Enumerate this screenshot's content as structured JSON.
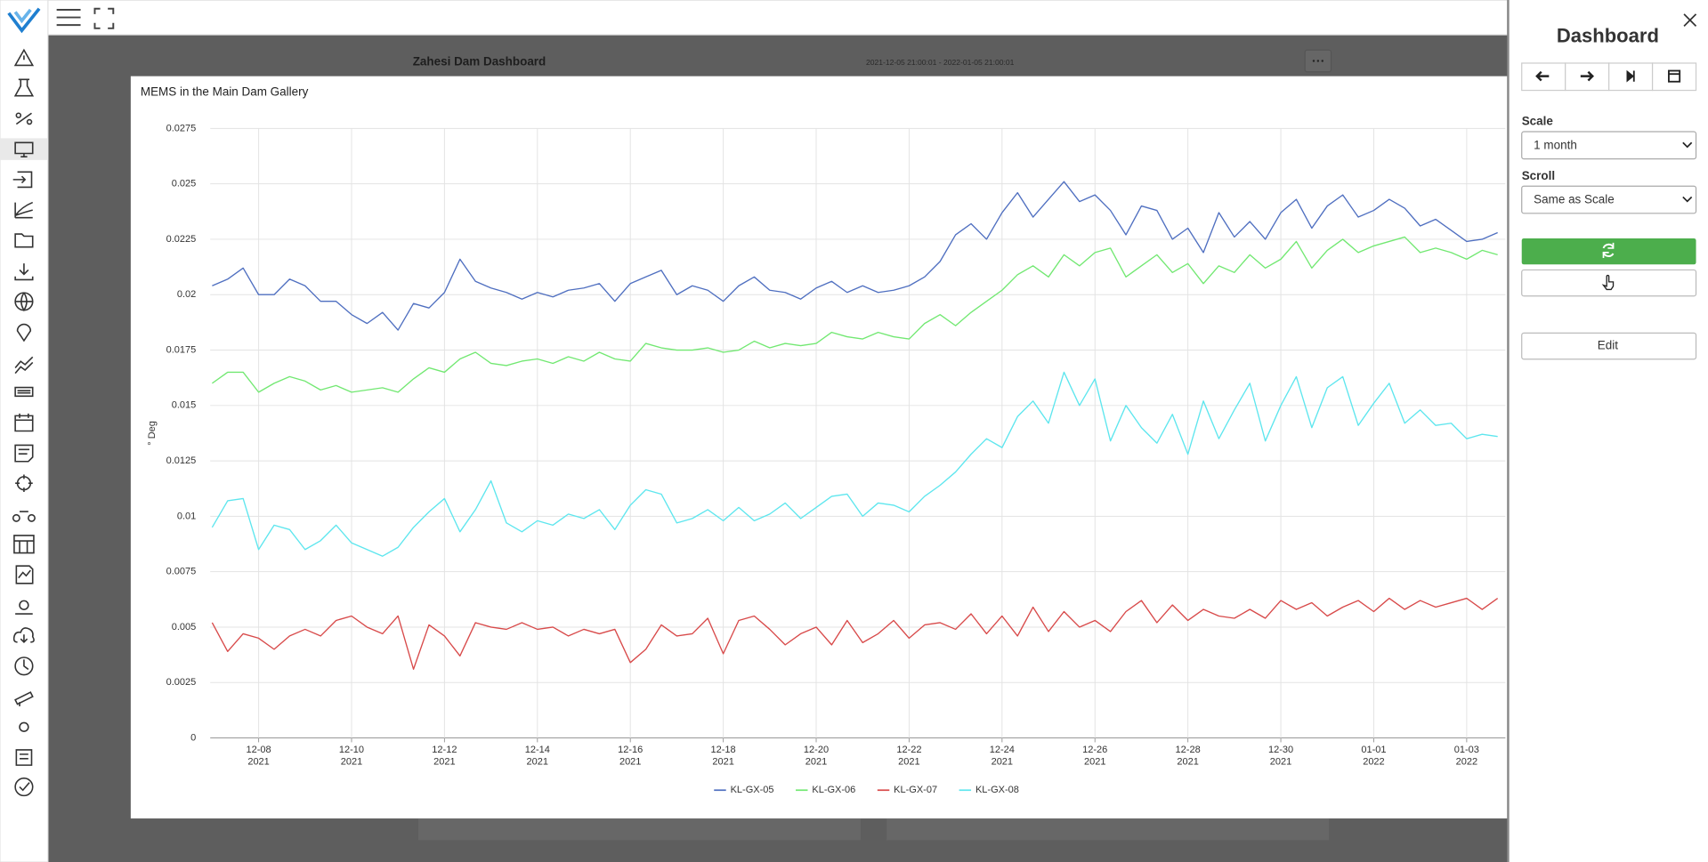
{
  "app": {
    "dashboard_title": "Zahesi Dam Dashboard",
    "time_range": "2021-12-05 21:00:01 - 2022-01-05 21:00:01"
  },
  "panel": {
    "title": "Dashboard",
    "scale_label": "Scale",
    "scale_value": "1 month",
    "scroll_label": "Scroll",
    "scroll_value": "Same as Scale",
    "edit_button": "Edit"
  },
  "chart_data": {
    "type": "line",
    "title": "MEMS in the Main Dam Gallery",
    "y_label": "° Deg",
    "grid": true,
    "legend": "bottom",
    "xlim": [
      "2021-12-06T23:00",
      "2022-01-03T20:00"
    ],
    "xticks": [
      {
        "value": "2021-12-08T00:00",
        "label": [
          "12-08",
          "2021"
        ]
      },
      {
        "value": "2021-12-10T00:00",
        "label": [
          "12-10",
          "2021"
        ]
      },
      {
        "value": "2021-12-12T00:00",
        "label": [
          "12-12",
          "2021"
        ]
      },
      {
        "value": "2021-12-14T00:00",
        "label": [
          "12-14",
          "2021"
        ]
      },
      {
        "value": "2021-12-16T00:00",
        "label": [
          "12-16",
          "2021"
        ]
      },
      {
        "value": "2021-12-18T00:00",
        "label": [
          "12-18",
          "2021"
        ]
      },
      {
        "value": "2021-12-20T00:00",
        "label": [
          "12-20",
          "2021"
        ]
      },
      {
        "value": "2021-12-22T00:00",
        "label": [
          "12-22",
          "2021"
        ]
      },
      {
        "value": "2021-12-24T00:00",
        "label": [
          "12-24",
          "2021"
        ]
      },
      {
        "value": "2021-12-26T00:00",
        "label": [
          "12-26",
          "2021"
        ]
      },
      {
        "value": "2021-12-28T00:00",
        "label": [
          "12-28",
          "2021"
        ]
      },
      {
        "value": "2021-12-30T00:00",
        "label": [
          "12-30",
          "2021"
        ]
      },
      {
        "value": "2022-01-01T00:00",
        "label": [
          "01-01",
          "2022"
        ]
      },
      {
        "value": "2022-01-03T00:00",
        "label": [
          "01-03",
          "2022"
        ]
      }
    ],
    "ylim": [
      0,
      0.0275
    ],
    "yticks": [
      0,
      0.0025,
      0.005,
      0.0075,
      0.01,
      0.0125,
      0.015,
      0.0175,
      0.02,
      0.0225,
      0.025,
      0.0275
    ],
    "x": [
      "2021-12-07T00:00",
      "2021-12-07T08:00",
      "2021-12-07T16:00",
      "2021-12-08T00:00",
      "2021-12-08T08:00",
      "2021-12-08T16:00",
      "2021-12-09T00:00",
      "2021-12-09T08:00",
      "2021-12-09T16:00",
      "2021-12-10T00:00",
      "2021-12-10T08:00",
      "2021-12-10T16:00",
      "2021-12-11T00:00",
      "2021-12-11T08:00",
      "2021-12-11T16:00",
      "2021-12-12T00:00",
      "2021-12-12T08:00",
      "2021-12-12T16:00",
      "2021-12-13T00:00",
      "2021-12-13T08:00",
      "2021-12-13T16:00",
      "2021-12-14T00:00",
      "2021-12-14T08:00",
      "2021-12-14T16:00",
      "2021-12-15T00:00",
      "2021-12-15T08:00",
      "2021-12-15T16:00",
      "2021-12-16T00:00",
      "2021-12-16T08:00",
      "2021-12-16T16:00",
      "2021-12-17T00:00",
      "2021-12-17T08:00",
      "2021-12-17T16:00",
      "2021-12-18T00:00",
      "2021-12-18T08:00",
      "2021-12-18T16:00",
      "2021-12-19T00:00",
      "2021-12-19T08:00",
      "2021-12-19T16:00",
      "2021-12-20T00:00",
      "2021-12-20T08:00",
      "2021-12-20T16:00",
      "2021-12-21T00:00",
      "2021-12-21T08:00",
      "2021-12-21T16:00",
      "2021-12-22T00:00",
      "2021-12-22T08:00",
      "2021-12-22T16:00",
      "2021-12-23T00:00",
      "2021-12-23T08:00",
      "2021-12-23T16:00",
      "2021-12-24T00:00",
      "2021-12-24T08:00",
      "2021-12-24T16:00",
      "2021-12-25T00:00",
      "2021-12-25T08:00",
      "2021-12-25T16:00",
      "2021-12-26T00:00",
      "2021-12-26T08:00",
      "2021-12-26T16:00",
      "2021-12-27T00:00",
      "2021-12-27T08:00",
      "2021-12-27T16:00",
      "2021-12-28T00:00",
      "2021-12-28T08:00",
      "2021-12-28T16:00",
      "2021-12-29T00:00",
      "2021-12-29T08:00",
      "2021-12-29T16:00",
      "2021-12-30T00:00",
      "2021-12-30T08:00",
      "2021-12-30T16:00",
      "2021-12-31T00:00",
      "2021-12-31T08:00",
      "2021-12-31T16:00",
      "2022-01-01T00:00",
      "2022-01-01T08:00",
      "2022-01-01T16:00",
      "2022-01-02T00:00",
      "2022-01-02T08:00",
      "2022-01-02T16:00",
      "2022-01-03T00:00",
      "2022-01-03T08:00",
      "2022-01-03T16:00"
    ],
    "series": [
      {
        "name": "KL-GX-05",
        "color": "#4f6fc0",
        "values": [
          0.0204,
          0.0207,
          0.0212,
          0.02,
          0.02,
          0.0207,
          0.0204,
          0.0197,
          0.0197,
          0.0191,
          0.0187,
          0.0192,
          0.0184,
          0.0196,
          0.0194,
          0.0201,
          0.0216,
          0.0206,
          0.0203,
          0.0201,
          0.0198,
          0.0201,
          0.0199,
          0.0202,
          0.0203,
          0.0205,
          0.0197,
          0.0205,
          0.0208,
          0.0211,
          0.02,
          0.0204,
          0.0202,
          0.0197,
          0.0204,
          0.0208,
          0.0202,
          0.0201,
          0.0198,
          0.0203,
          0.0206,
          0.0201,
          0.0204,
          0.0201,
          0.0202,
          0.0204,
          0.0208,
          0.0215,
          0.0227,
          0.0232,
          0.0225,
          0.0237,
          0.0246,
          0.0235,
          0.0243,
          0.0251,
          0.0242,
          0.0245,
          0.0238,
          0.0227,
          0.024,
          0.0238,
          0.0225,
          0.023,
          0.0219,
          0.0237,
          0.0226,
          0.0233,
          0.0225,
          0.0237,
          0.0243,
          0.023,
          0.024,
          0.0245,
          0.0235,
          0.0238,
          0.0243,
          0.0239,
          0.0231,
          0.0234,
          0.0229,
          0.0224,
          0.0225,
          0.0228
        ]
      },
      {
        "name": "KL-GX-06",
        "color": "#72e872",
        "values": [
          0.016,
          0.0165,
          0.0165,
          0.0156,
          0.016,
          0.0163,
          0.0161,
          0.0157,
          0.0159,
          0.0156,
          0.0157,
          0.0158,
          0.0156,
          0.0162,
          0.0167,
          0.0165,
          0.0171,
          0.0174,
          0.0169,
          0.0168,
          0.017,
          0.0171,
          0.0169,
          0.0172,
          0.017,
          0.0174,
          0.0171,
          0.017,
          0.0178,
          0.0176,
          0.0175,
          0.0175,
          0.0176,
          0.0174,
          0.0175,
          0.0179,
          0.0176,
          0.0178,
          0.0177,
          0.0178,
          0.0183,
          0.0181,
          0.018,
          0.0183,
          0.0181,
          0.018,
          0.0187,
          0.0191,
          0.0186,
          0.0192,
          0.0197,
          0.0202,
          0.0209,
          0.0213,
          0.0208,
          0.0218,
          0.0213,
          0.0219,
          0.0221,
          0.0208,
          0.0213,
          0.0218,
          0.021,
          0.0214,
          0.0205,
          0.0213,
          0.021,
          0.0218,
          0.0212,
          0.0216,
          0.0224,
          0.0212,
          0.022,
          0.0225,
          0.0219,
          0.0222,
          0.0224,
          0.0226,
          0.0219,
          0.0221,
          0.0219,
          0.0216,
          0.022,
          0.0218
        ]
      },
      {
        "name": "KL-GX-07",
        "color": "#d84a4a",
        "values": [
          0.0052,
          0.0039,
          0.0047,
          0.0045,
          0.004,
          0.0046,
          0.0049,
          0.0046,
          0.0053,
          0.0055,
          0.005,
          0.0047,
          0.0055,
          0.0031,
          0.0051,
          0.0046,
          0.0037,
          0.0052,
          0.005,
          0.0049,
          0.0052,
          0.0049,
          0.005,
          0.0046,
          0.0049,
          0.0047,
          0.0049,
          0.0034,
          0.004,
          0.0051,
          0.0046,
          0.0047,
          0.0054,
          0.0038,
          0.0053,
          0.0055,
          0.0049,
          0.0042,
          0.0047,
          0.005,
          0.0042,
          0.0053,
          0.0043,
          0.0047,
          0.0053,
          0.0045,
          0.0051,
          0.0052,
          0.0049,
          0.0056,
          0.0047,
          0.0055,
          0.0046,
          0.0059,
          0.0048,
          0.0057,
          0.005,
          0.0053,
          0.0048,
          0.0057,
          0.0062,
          0.0052,
          0.006,
          0.0053,
          0.0058,
          0.0055,
          0.0054,
          0.0058,
          0.0054,
          0.0062,
          0.0058,
          0.0061,
          0.0055,
          0.0059,
          0.0062,
          0.0057,
          0.0063,
          0.0058,
          0.0062,
          0.0059,
          0.0061,
          0.0063,
          0.0058,
          0.0063
        ]
      },
      {
        "name": "KL-GX-08",
        "color": "#5ee6ee",
        "values": [
          0.0095,
          0.0107,
          0.0108,
          0.0085,
          0.0096,
          0.0094,
          0.0085,
          0.0089,
          0.0096,
          0.0088,
          0.0085,
          0.0082,
          0.0086,
          0.0095,
          0.0102,
          0.0108,
          0.0093,
          0.0103,
          0.0116,
          0.0097,
          0.0093,
          0.0098,
          0.0096,
          0.0101,
          0.0099,
          0.0103,
          0.0094,
          0.0105,
          0.0112,
          0.011,
          0.0097,
          0.0099,
          0.0103,
          0.0098,
          0.0104,
          0.0098,
          0.0101,
          0.0106,
          0.0099,
          0.0104,
          0.0109,
          0.011,
          0.01,
          0.0106,
          0.0105,
          0.0102,
          0.0109,
          0.0114,
          0.012,
          0.0128,
          0.0135,
          0.0131,
          0.0145,
          0.0152,
          0.0142,
          0.0165,
          0.015,
          0.0162,
          0.0134,
          0.015,
          0.014,
          0.0133,
          0.0146,
          0.0128,
          0.0152,
          0.0135,
          0.0148,
          0.016,
          0.0134,
          0.015,
          0.0163,
          0.014,
          0.0158,
          0.0163,
          0.0141,
          0.0151,
          0.016,
          0.0142,
          0.0148,
          0.0141,
          0.0142,
          0.0135,
          0.0137,
          0.0136
        ]
      }
    ]
  }
}
